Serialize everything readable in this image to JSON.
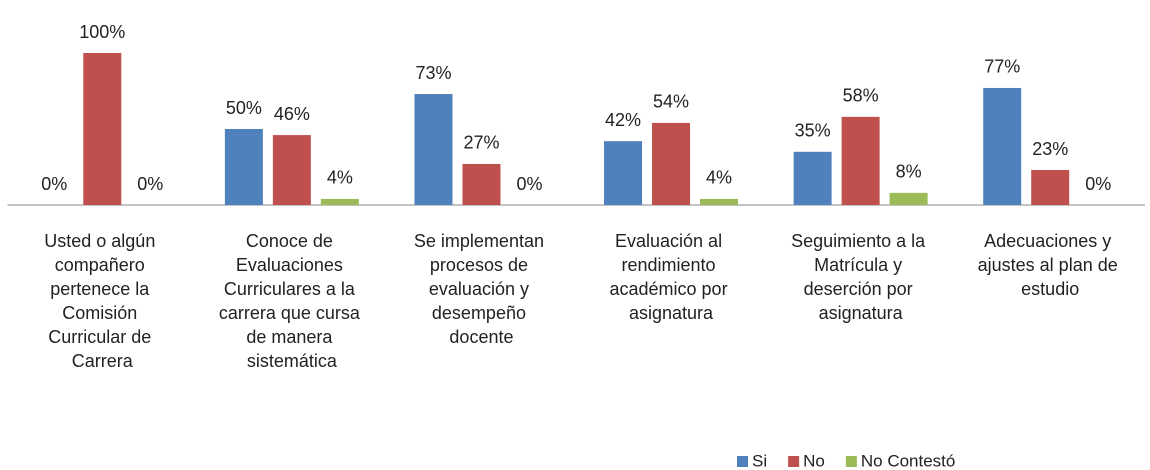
{
  "chart_data": {
    "type": "bar",
    "categories": [
      "Usted o algún compañero pertenece la Comisión Curricular de Carrera",
      "Conoce de Evaluaciones Curriculares a la carrera que cursa de manera sistemática",
      "Se implementan procesos de evaluación y desempeño docente",
      "Evaluación al rendimiento académico por asignatura",
      "Seguimiento a la Matrícula y deserción por asignatura",
      "Adecuaciones y ajustes al plan de estudio"
    ],
    "series": [
      {
        "name": "Si",
        "color": "#4f81bd",
        "values": [
          0,
          50,
          73,
          42,
          35,
          77
        ],
        "value_labels": [
          "0%",
          "50%",
          "73%",
          "42%",
          "35%",
          "77%"
        ]
      },
      {
        "name": "No",
        "color": "#c0504d",
        "values": [
          100,
          46,
          27,
          54,
          58,
          23
        ],
        "value_labels": [
          "100%",
          "46%",
          "27%",
          "54%",
          "58%",
          "23%"
        ]
      },
      {
        "name": "No Contestó",
        "color": "#9bbb59",
        "values": [
          0,
          4,
          0,
          4,
          8,
          0
        ],
        "value_labels": [
          "0%",
          "4%",
          "0%",
          "4%",
          "8%",
          "0%"
        ]
      }
    ],
    "ylim": [
      0,
      100
    ],
    "legend": "bottom-right"
  }
}
